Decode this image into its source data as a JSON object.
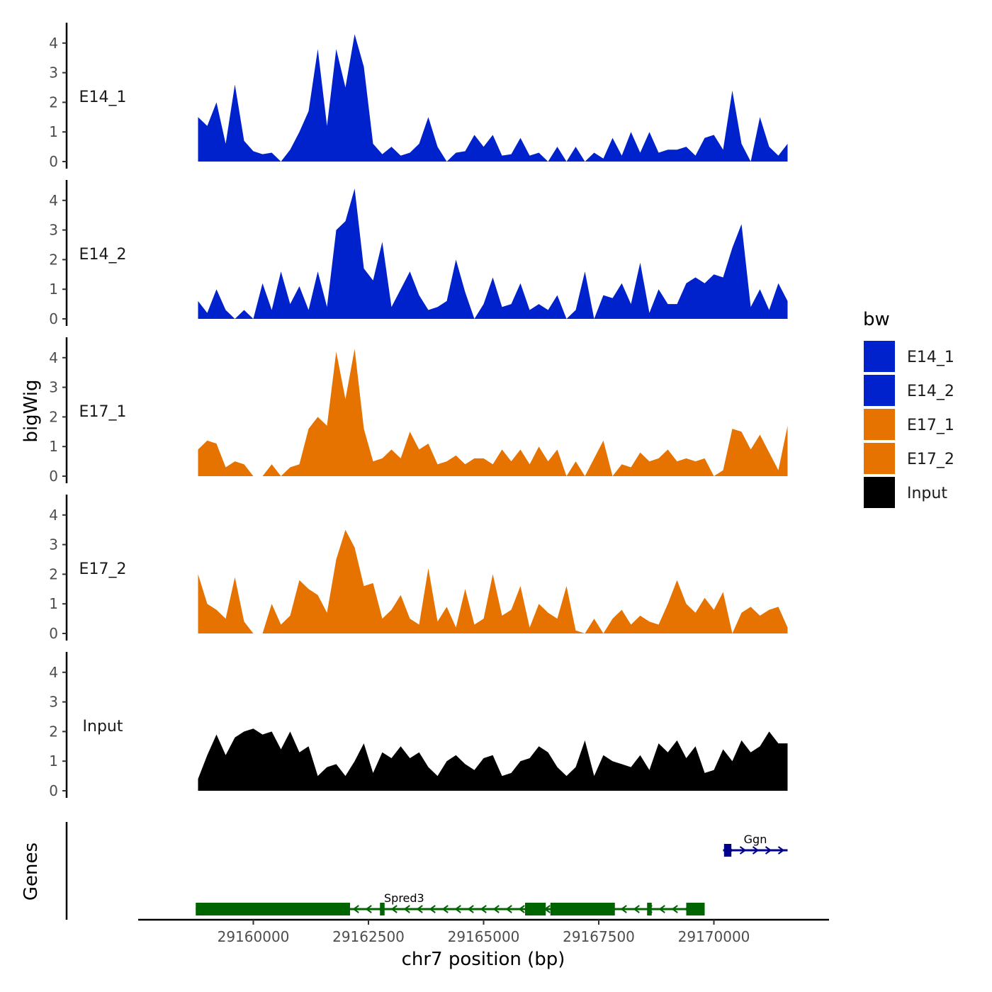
{
  "chart_data": {
    "type": "area",
    "title": "",
    "xlabel": "chr7 position (bp)",
    "ylabel": "bigWig",
    "genes_label": "Genes",
    "xlim": [
      29157500,
      29172500
    ],
    "ylim": [
      0,
      4.5
    ],
    "x_ticks": [
      29160000,
      29162500,
      29165000,
      29167500,
      29170000
    ],
    "x_tick_labels": [
      "29160000",
      "29162500",
      "29165000",
      "29167500",
      "29170000"
    ],
    "y_ticks": [
      0,
      1,
      2,
      3,
      4
    ],
    "y_tick_labels": [
      "0",
      "1",
      "2",
      "3",
      "4"
    ],
    "legend": {
      "title": "bw",
      "placement": "right",
      "entries": [
        {
          "label": "E14_1",
          "color": "#0022CC"
        },
        {
          "label": "E14_2",
          "color": "#0022CC"
        },
        {
          "label": "E17_1",
          "color": "#E67300"
        },
        {
          "label": "E17_2",
          "color": "#E67300"
        },
        {
          "label": "Input",
          "color": "#000000"
        }
      ]
    },
    "x": [
      29158800,
      29159000,
      29159200,
      29159400,
      29159600,
      29159800,
      29160000,
      29160200,
      29160400,
      29160600,
      29160800,
      29161000,
      29161200,
      29161400,
      29161600,
      29161800,
      29162000,
      29162200,
      29162400,
      29162600,
      29162800,
      29163000,
      29163200,
      29163400,
      29163600,
      29163800,
      29164000,
      29164200,
      29164400,
      29164600,
      29164800,
      29165000,
      29165200,
      29165400,
      29165600,
      29165800,
      29166000,
      29166200,
      29166400,
      29166600,
      29166800,
      29167000,
      29167200,
      29167400,
      29167600,
      29167800,
      29168000,
      29168200,
      29168400,
      29168600,
      29168800,
      29169000,
      29169200,
      29169400,
      29169600,
      29169800,
      29170000,
      29170200,
      29170400,
      29170600,
      29170800,
      29171000,
      29171200,
      29171400,
      29171600
    ],
    "series": [
      {
        "name": "E14_1",
        "color": "#0022CC",
        "values": [
          1.5,
          1.2,
          2.0,
          0.6,
          2.6,
          0.7,
          0.35,
          0.25,
          0.3,
          0.0,
          0.4,
          1.0,
          1.7,
          3.8,
          1.2,
          3.8,
          2.5,
          4.3,
          3.2,
          0.6,
          0.25,
          0.5,
          0.2,
          0.3,
          0.6,
          1.5,
          0.5,
          0.0,
          0.3,
          0.35,
          0.9,
          0.5,
          0.9,
          0.2,
          0.25,
          0.8,
          0.2,
          0.3,
          0.0,
          0.5,
          0.0,
          0.5,
          0.0,
          0.3,
          0.1,
          0.8,
          0.2,
          1.0,
          0.3,
          1.0,
          0.3,
          0.4,
          0.4,
          0.5,
          0.2,
          0.8,
          0.9,
          0.4,
          2.4,
          0.6,
          0.0,
          1.5,
          0.5,
          0.2,
          0.6
        ]
      },
      {
        "name": "E14_2",
        "color": "#0022CC",
        "values": [
          0.6,
          0.2,
          1.0,
          0.3,
          0.0,
          0.3,
          0.0,
          1.2,
          0.3,
          1.6,
          0.5,
          1.1,
          0.3,
          1.6,
          0.4,
          3.0,
          3.3,
          4.4,
          1.7,
          1.3,
          2.6,
          0.4,
          1.0,
          1.6,
          0.8,
          0.3,
          0.4,
          0.6,
          2.0,
          0.9,
          0.0,
          0.5,
          1.4,
          0.4,
          0.5,
          1.2,
          0.3,
          0.5,
          0.3,
          0.8,
          0.0,
          0.3,
          1.6,
          0.0,
          0.8,
          0.7,
          1.2,
          0.5,
          1.9,
          0.2,
          1.0,
          0.5,
          0.5,
          1.2,
          1.4,
          1.2,
          1.5,
          1.4,
          2.4,
          3.2,
          0.4,
          1.0,
          0.3,
          1.2,
          0.6
        ]
      },
      {
        "name": "E17_1",
        "color": "#E67300",
        "values": [
          0.9,
          1.2,
          1.1,
          0.3,
          0.5,
          0.4,
          0.0,
          0.0,
          0.4,
          0.0,
          0.3,
          0.4,
          1.6,
          2.0,
          1.7,
          4.2,
          2.6,
          4.3,
          1.6,
          0.5,
          0.6,
          0.9,
          0.6,
          1.5,
          0.9,
          1.1,
          0.4,
          0.5,
          0.7,
          0.4,
          0.6,
          0.6,
          0.4,
          0.9,
          0.5,
          0.9,
          0.4,
          1.0,
          0.5,
          0.9,
          0.0,
          0.5,
          0.0,
          0.6,
          1.2,
          0.0,
          0.4,
          0.3,
          0.8,
          0.5,
          0.6,
          0.9,
          0.5,
          0.6,
          0.5,
          0.6,
          0.0,
          0.2,
          1.6,
          1.5,
          0.9,
          1.4,
          0.8,
          0.2,
          1.7
        ]
      },
      {
        "name": "E17_2",
        "color": "#E67300",
        "values": [
          2.0,
          1.0,
          0.8,
          0.5,
          1.9,
          0.4,
          0.0,
          0.0,
          1.0,
          0.3,
          0.6,
          1.8,
          1.5,
          1.3,
          0.7,
          2.5,
          3.5,
          2.9,
          1.6,
          1.7,
          0.5,
          0.8,
          1.3,
          0.5,
          0.3,
          2.2,
          0.4,
          0.9,
          0.2,
          1.5,
          0.3,
          0.5,
          2.0,
          0.6,
          0.8,
          1.6,
          0.2,
          1.0,
          0.7,
          0.5,
          1.6,
          0.1,
          0.0,
          0.5,
          0.0,
          0.5,
          0.8,
          0.3,
          0.6,
          0.4,
          0.3,
          1.0,
          1.8,
          1.0,
          0.7,
          1.2,
          0.8,
          1.4,
          0.0,
          0.7,
          0.9,
          0.6,
          0.8,
          0.9,
          0.2
        ]
      },
      {
        "name": "Input",
        "color": "#000000",
        "values": [
          0.4,
          1.2,
          1.9,
          1.2,
          1.8,
          2.0,
          2.1,
          1.9,
          2.0,
          1.4,
          2.0,
          1.3,
          1.5,
          0.5,
          0.8,
          0.9,
          0.5,
          1.0,
          1.6,
          0.6,
          1.3,
          1.1,
          1.5,
          1.1,
          1.3,
          0.8,
          0.5,
          1.0,
          1.2,
          0.9,
          0.7,
          1.1,
          1.2,
          0.5,
          0.6,
          1.0,
          1.1,
          1.5,
          1.3,
          0.8,
          0.5,
          0.8,
          1.7,
          0.5,
          1.2,
          1.0,
          0.9,
          0.8,
          1.2,
          0.7,
          1.6,
          1.3,
          1.7,
          1.1,
          1.5,
          0.6,
          0.7,
          1.4,
          1.0,
          1.7,
          1.3,
          1.5,
          2.0,
          1.6,
          1.6
        ]
      }
    ],
    "genes": [
      {
        "name": "Ggn",
        "strand": "+",
        "color": "#00008B",
        "start": 29170200,
        "end": 29171600,
        "exons": [
          [
            29170220,
            29170380
          ]
        ]
      },
      {
        "name": "Spred3",
        "strand": "-",
        "color": "#006400",
        "start": 29158750,
        "end": 29169800,
        "exons": [
          [
            29158750,
            29162100
          ],
          [
            29162750,
            29162850
          ],
          [
            29165900,
            29166350
          ],
          [
            29166450,
            29167850
          ],
          [
            29168550,
            29168650
          ],
          [
            29169400,
            29169800
          ]
        ]
      }
    ]
  }
}
